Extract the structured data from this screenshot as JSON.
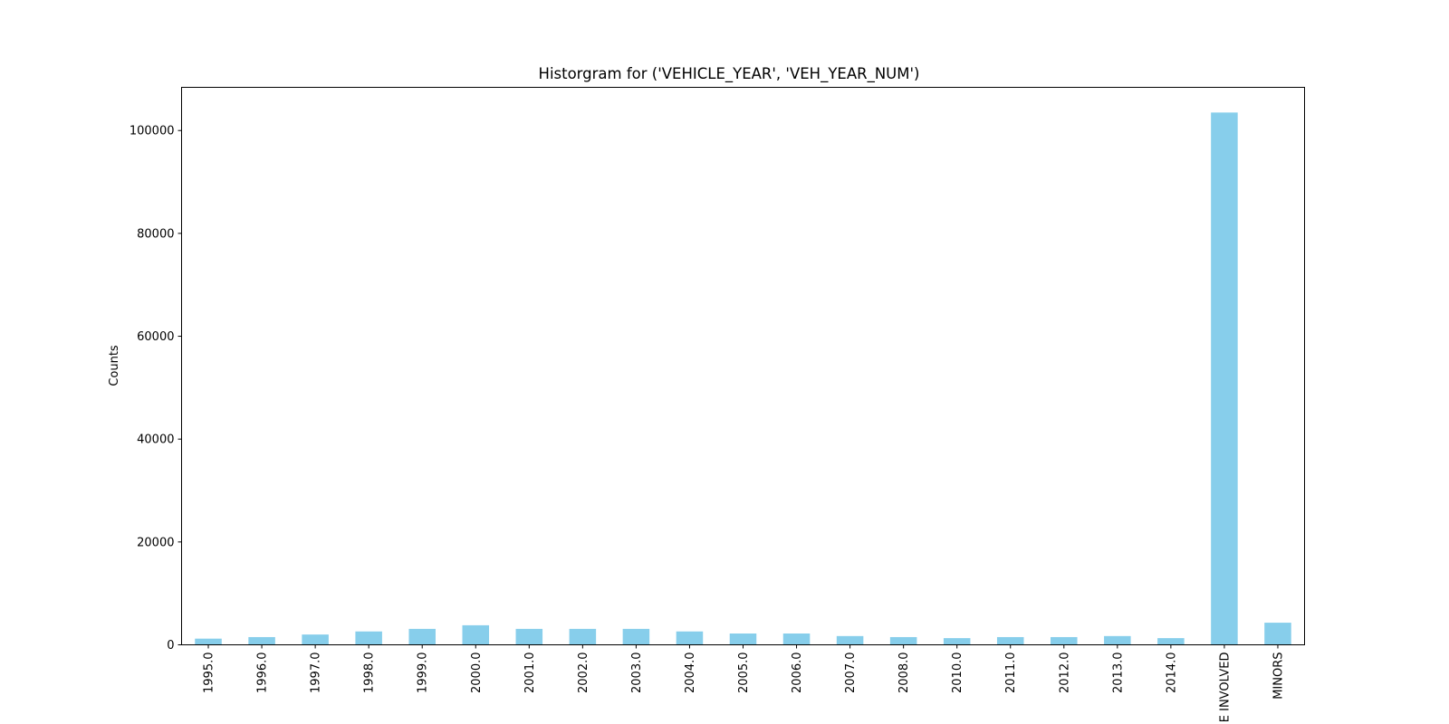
{
  "chart_data": {
    "type": "bar",
    "title": "Historgram for ('VEHICLE_YEAR', 'VEH_YEAR_NUM')",
    "xlabel": "",
    "ylabel": "Counts",
    "categories": [
      "1995.0",
      "1996.0",
      "1997.0",
      "1998.0",
      "1999.0",
      "2000.0",
      "2001.0",
      "2002.0",
      "2003.0",
      "2004.0",
      "2005.0",
      "2006.0",
      "2007.0",
      "2008.0",
      "2010.0",
      "2011.0",
      "2012.0",
      "2013.0",
      "2014.0",
      "E INVOLVED",
      "MINORS"
    ],
    "values": [
      1200,
      1500,
      2000,
      2600,
      3100,
      3800,
      3100,
      3100,
      3100,
      2600,
      2200,
      2200,
      1700,
      1500,
      1300,
      1500,
      1500,
      1700,
      1300,
      103500,
      4300
    ],
    "ylim": [
      0,
      108400
    ],
    "yticks": [
      0,
      20000,
      40000,
      60000,
      80000,
      100000
    ],
    "grid": false,
    "colors": {
      "bar": "#87ceeb",
      "axis": "#000000"
    }
  }
}
